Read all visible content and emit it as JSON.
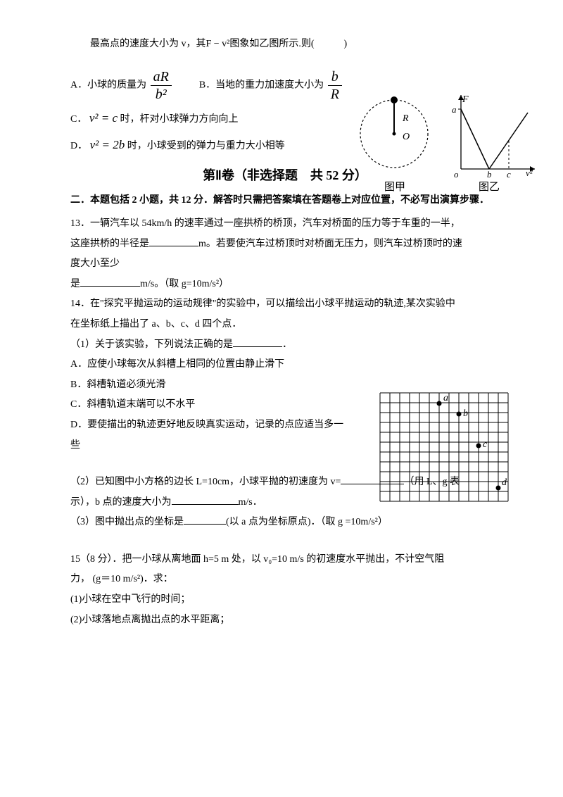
{
  "intro": "最高点的速度大小为 v，其F − v²图象如乙图所示.则(　　　)",
  "optA_prefix": "A．小球的质量为",
  "optA_frac_num": "aR",
  "optA_frac_den": "b²",
  "optB_prefix": "B．当地的重力加速度大小为",
  "optB_frac_num": "b",
  "optB_frac_den": "R",
  "optC_prefix": "C．",
  "optC_math": "v² = c",
  "optC_suffix": "时，杆对小球弹力方向向上",
  "optD_prefix": "D．",
  "optD_math": "v² = 2b",
  "optD_suffix": "时，小球受到的弹力与重力大小相等",
  "fig_jia": "图甲",
  "fig_yi": "图乙",
  "axis_F": "F",
  "axis_a": "a",
  "axis_o": "o",
  "axis_b": "b",
  "axis_c": "c",
  "axis_v2": "v²",
  "circ_R": "R",
  "circ_O": "O",
  "section2": "第Ⅱ卷（非选择题　共 52 分）",
  "sec2_head": "二．本题包括 2 小题，共 12 分．解答时只需把答案填在答题卷上对应位置，不必写出演算步骤．",
  "q13a": "13．一辆汽车以 54km/h 的速率通过一座拱桥的桥顶，汽车对桥面的压力等于车重的一半，",
  "q13b": "这座拱桥的半径是",
  "q13c": "m。若要使汽车过桥顶时对桥面无压力，则汽车过桥顶时的速",
  "q13d": "度大小至少",
  "q13e": "是",
  "q13f": "m/s。（取 g=10m/s²）",
  "q14a": "14．在\"探究平抛运动的运动规律\"的实验中，可以描绘出小球平抛运动的轨迹,某次实验中",
  "q14b": "在坐标纸上描出了 a、b、c、d 四个点．",
  "q14c": "（1）关于该实验，下列说法正确的是",
  "q14c2": "．",
  "q14A": "A．应使小球每次从斜槽上相同的位置由静止滑下",
  "q14B": "B．斜槽轨道必须光滑",
  "q14C": "C．斜槽轨道末端可以不水平",
  "q14D": "D．要使描出的轨迹更好地反映真实运动，记录的点应适当多一",
  "q14D2": "些",
  "grid_a": "a",
  "grid_b": "b",
  "grid_c": "c",
  "grid_d": "d",
  "q14_2a": "（2）已知图中小方格的边长 L=10cm，小球平抛的初速度为 v=",
  "q14_2b": "（用 L、g 表",
  "q14_2c": "示），b 点的速度大小为",
  "q14_2d": "m/s．",
  "q14_3a": "（3）图中抛出点的坐标是",
  "q14_3b": "(以 a 点为坐标原点)．（取 g =10m/s²）",
  "q15a": "15（8 分）．把一小球从离地面 h=5 m 处，以 v₀=10 m/s 的初速度水平抛出，不计空气阻",
  "q15b": "力，  (g＝10 m/s²)．求：",
  "q15c": "(1)小球在空中飞行的时间；",
  "q15d": "(2)小球落地点离抛出点的水平距离；"
}
